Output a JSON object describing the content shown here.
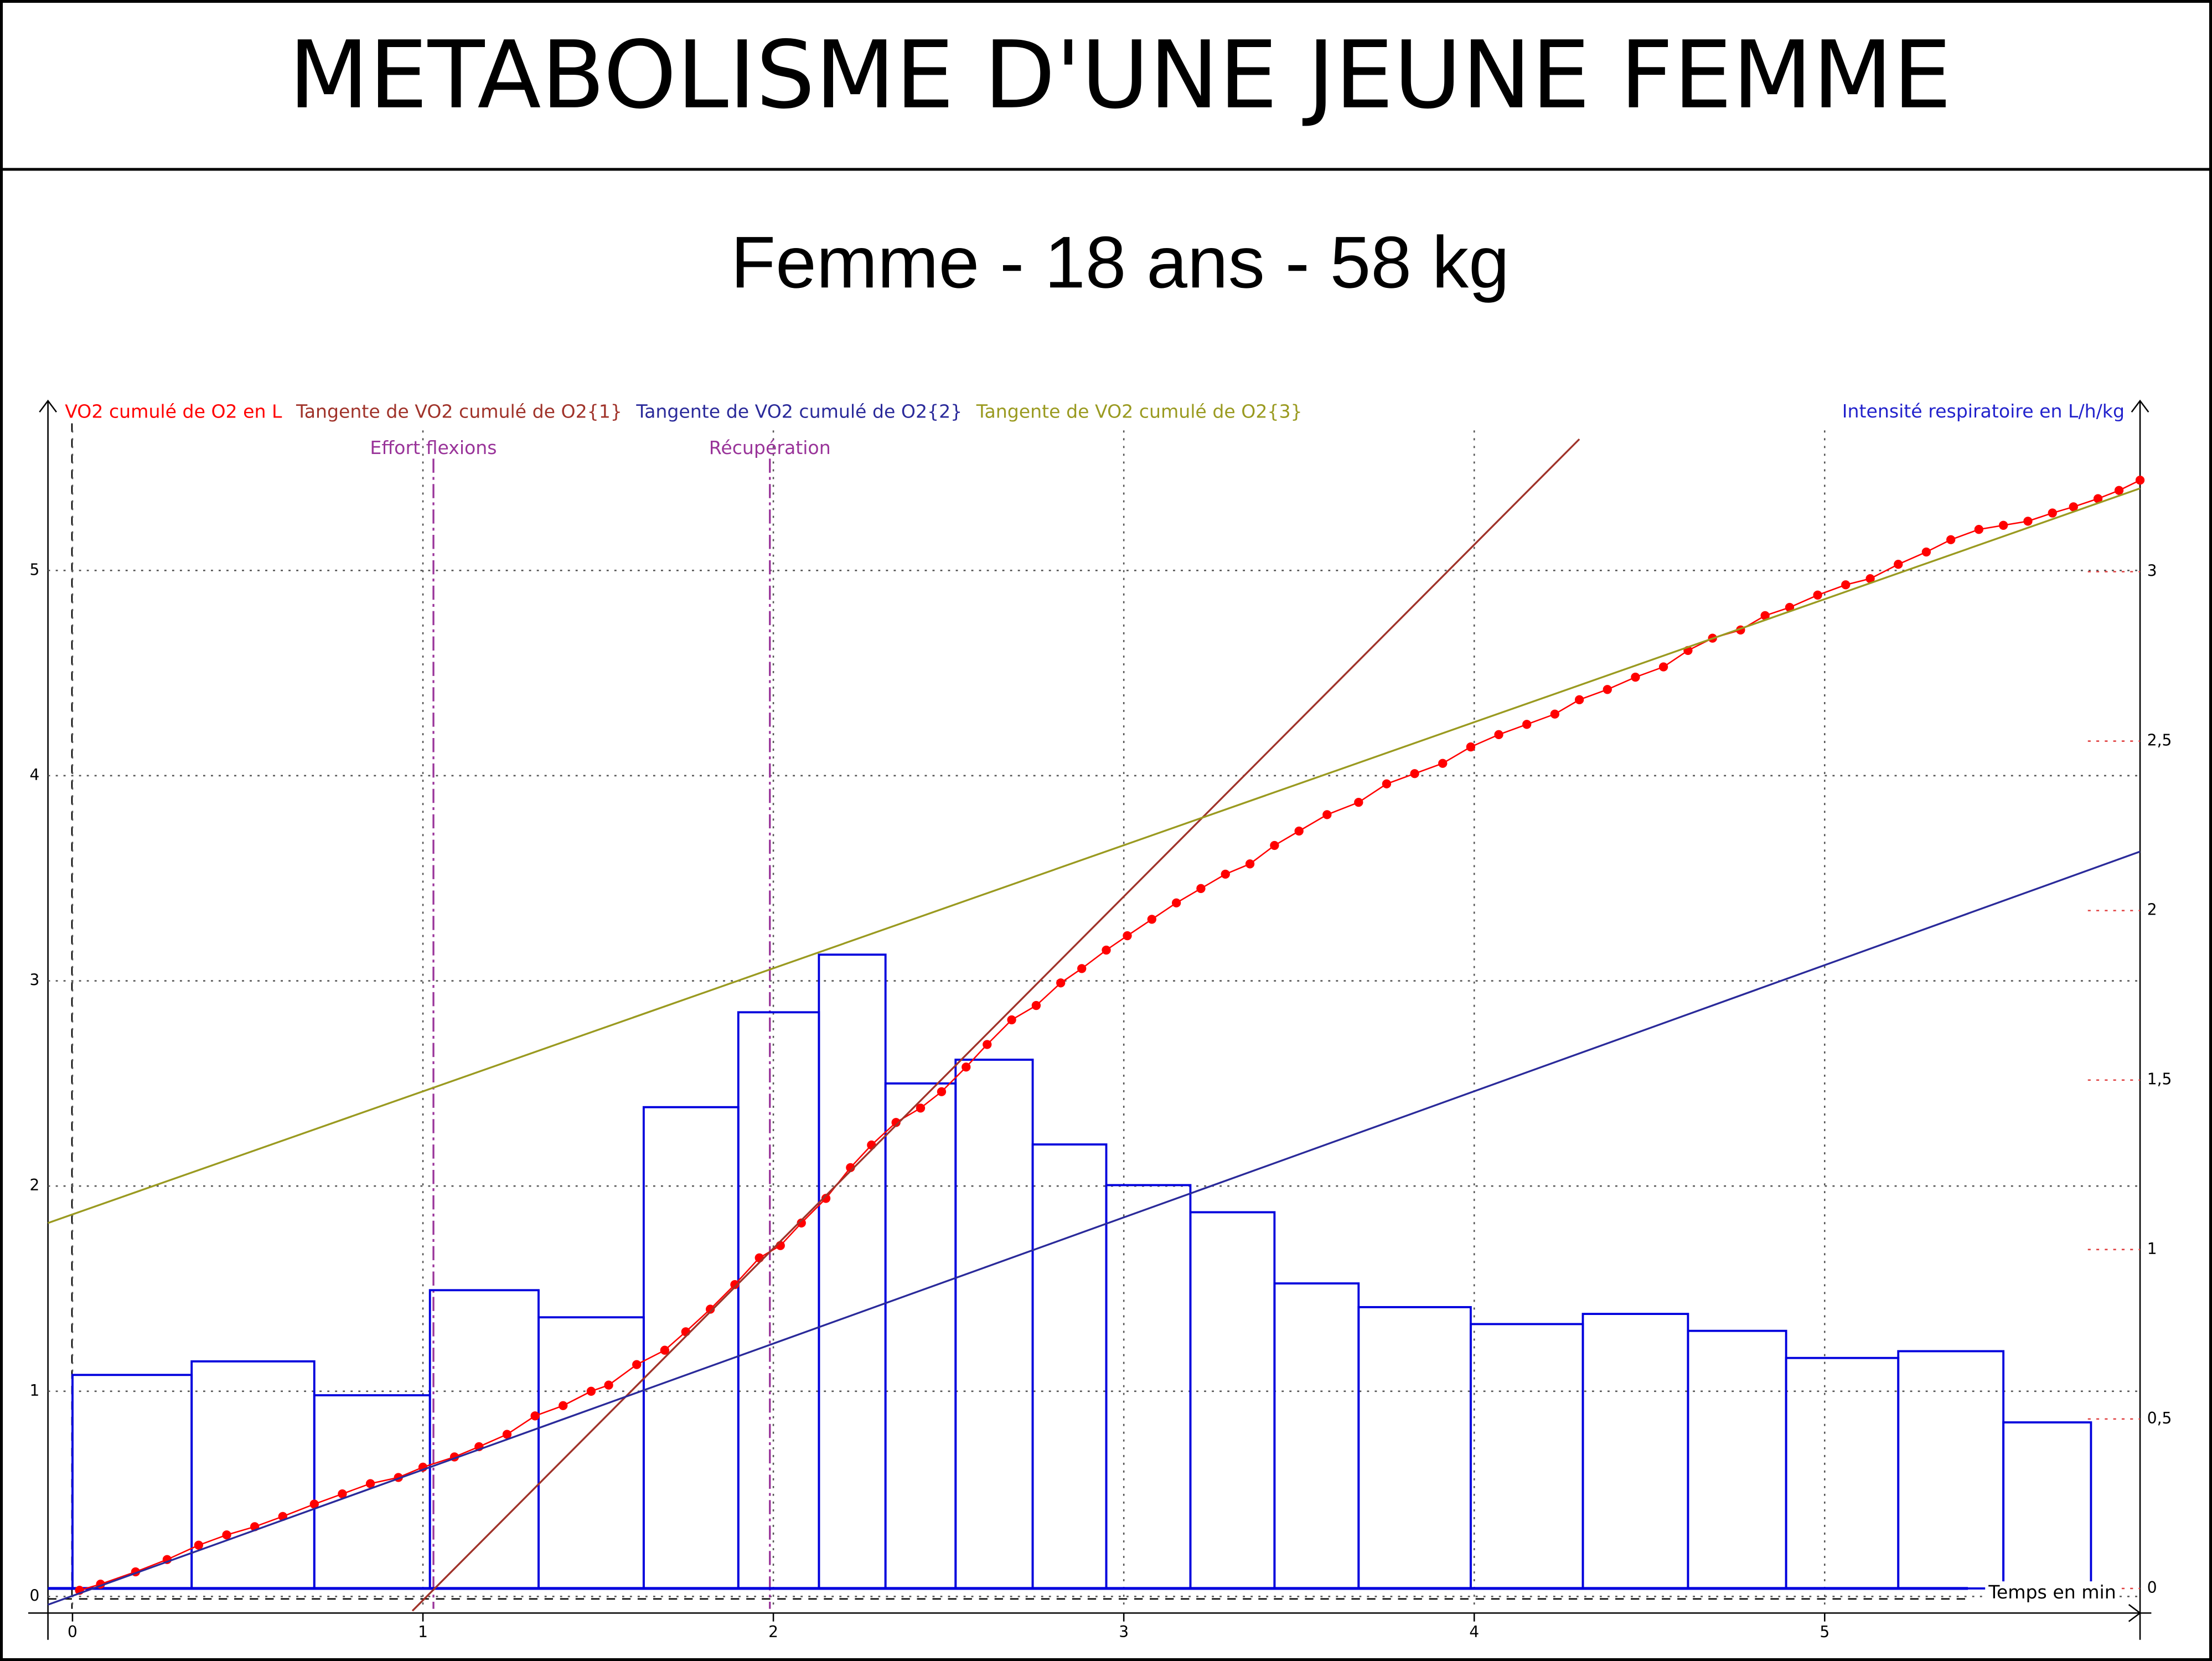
{
  "header": {
    "title": "METABOLISME D'UNE JEUNE FEMME"
  },
  "chart_data": {
    "type": "combo",
    "title": "Femme - 18 ans - 58 kg",
    "x_label": "Temps en min",
    "y2_label": "Intensité respiratoire en L/h/kg",
    "xlim": [
      -0.07,
      5.9
    ],
    "xticks": [
      0,
      1,
      2,
      3,
      4,
      5
    ],
    "ylim": [
      -0.06,
      5.82
    ],
    "yticks": [
      0,
      1,
      2,
      3,
      4,
      5
    ],
    "y2lim": [
      -0.06,
      3.5
    ],
    "y2ticks": [
      0,
      {
        "value": 0.5,
        "label": "0,5"
      },
      1,
      {
        "value": 1.5,
        "label": "1,5"
      },
      2,
      {
        "value": 2.5,
        "label": "2,5"
      },
      3
    ],
    "grid": true,
    "markers": [
      {
        "label": "Effort flexions",
        "x": 1.03,
        "color": "#993399"
      },
      {
        "label": "Récupération",
        "x": 1.99,
        "color": "#993399"
      }
    ],
    "histogram": {
      "type": "histogram",
      "axis": "y2",
      "color": "#0000dd",
      "bins": [
        0,
        0.34,
        0.69,
        1.02,
        1.33,
        1.63,
        1.9,
        2.13,
        2.32,
        2.52,
        2.74,
        2.95,
        3.19,
        3.43,
        3.67,
        3.99,
        4.31,
        4.61,
        4.89,
        5.21,
        5.51,
        5.76
      ],
      "values": [
        0.63,
        0.67,
        0.57,
        0.88,
        0.8,
        1.42,
        1.7,
        1.87,
        1.49,
        1.56,
        1.31,
        1.19,
        1.11,
        0.9,
        0.83,
        0.78,
        0.81,
        0.76,
        0.68,
        0.7,
        0.49
      ]
    },
    "series": [
      {
        "name": "VO2 cumulé de O2 en L",
        "type": "scatter-line",
        "color": "#ff0000",
        "x": [
          0.02,
          0.08,
          0.18,
          0.27,
          0.36,
          0.44,
          0.52,
          0.6,
          0.69,
          0.77,
          0.85,
          0.93,
          1.0,
          1.09,
          1.16,
          1.24,
          1.32,
          1.4,
          1.48,
          1.53,
          1.61,
          1.69,
          1.75,
          1.82,
          1.89,
          1.96,
          2.02,
          2.08,
          2.15,
          2.22,
          2.28,
          2.35,
          2.42,
          2.48,
          2.55,
          2.61,
          2.68,
          2.75,
          2.82,
          2.88,
          2.95,
          3.01,
          3.08,
          3.15,
          3.22,
          3.29,
          3.36,
          3.43,
          3.5,
          3.58,
          3.67,
          3.75,
          3.83,
          3.91,
          3.99,
          4.07,
          4.15,
          4.23,
          4.3,
          4.38,
          4.46,
          4.54,
          4.61,
          4.68,
          4.76,
          4.83,
          4.9,
          4.98,
          5.06,
          5.13,
          5.21,
          5.29,
          5.36,
          5.44,
          5.51,
          5.58,
          5.65,
          5.71,
          5.78,
          5.84,
          5.9
        ],
        "values": [
          0.03,
          0.06,
          0.12,
          0.18,
          0.25,
          0.3,
          0.34,
          0.39,
          0.45,
          0.5,
          0.55,
          0.58,
          0.63,
          0.68,
          0.73,
          0.79,
          0.88,
          0.93,
          1.0,
          1.03,
          1.13,
          1.2,
          1.29,
          1.4,
          1.52,
          1.65,
          1.71,
          1.82,
          1.94,
          2.09,
          2.2,
          2.31,
          2.38,
          2.46,
          2.58,
          2.69,
          2.81,
          2.88,
          2.99,
          3.06,
          3.15,
          3.22,
          3.3,
          3.38,
          3.45,
          3.52,
          3.57,
          3.66,
          3.73,
          3.81,
          3.87,
          3.96,
          4.01,
          4.06,
          4.14,
          4.2,
          4.25,
          4.3,
          4.37,
          4.42,
          4.48,
          4.53,
          4.61,
          4.67,
          4.71,
          4.78,
          4.82,
          4.88,
          4.93,
          4.96,
          5.03,
          5.09,
          5.15,
          5.2,
          5.22,
          5.24,
          5.28,
          5.31,
          5.35,
          5.39,
          5.44
        ]
      },
      {
        "name": "Tangente de VO2 cumulé de O2{1}",
        "type": "line",
        "color": "#a0332a",
        "x": [
          0.97,
          4.3
        ],
        "values": [
          -0.07,
          5.64
        ]
      },
      {
        "name": "Tangente de VO2 cumulé de O2{2}",
        "type": "line",
        "color": "#2a2a9a",
        "x": [
          -0.07,
          5.9
        ],
        "values": [
          -0.04,
          3.63
        ]
      },
      {
        "name": "Tangente de VO2 cumulé de O2{3}",
        "type": "line",
        "color": "#9a9a20",
        "x": [
          -0.07,
          5.9
        ],
        "values": [
          1.82,
          5.4
        ]
      }
    ]
  }
}
